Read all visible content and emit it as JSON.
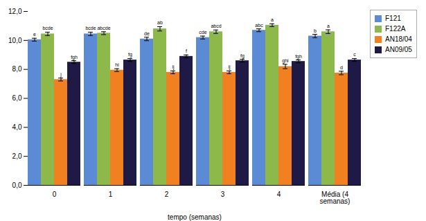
{
  "chart_data": {
    "type": "bar",
    "categories": [
      "0",
      "1",
      "2",
      "3",
      "4",
      "Média (4\nsemanas)"
    ],
    "series": [
      {
        "name": "F121",
        "color": "#5B8BD4",
        "values": [
          10.05,
          10.45,
          10.1,
          10.2,
          10.7,
          10.3
        ],
        "errors": [
          0.1,
          0.12,
          0.12,
          0.1,
          0.1,
          0.12
        ],
        "annotations": [
          "e",
          "bcde",
          "de",
          "cde",
          "abc",
          "b"
        ]
      },
      {
        "name": "F122A",
        "color": "#8DB94A",
        "values": [
          10.45,
          10.5,
          10.8,
          10.6,
          11.05,
          10.6
        ],
        "errors": [
          0.12,
          0.1,
          0.15,
          0.12,
          0.1,
          0.13
        ],
        "annotations": [
          "bcde",
          "abcde",
          "ab",
          "abcd",
          "a",
          "a"
        ]
      },
      {
        "name": "AN18/04",
        "color": "#F08020",
        "values": [
          7.3,
          7.95,
          7.8,
          7.8,
          8.2,
          7.75
        ],
        "errors": [
          0.1,
          0.1,
          0.1,
          0.1,
          0.15,
          0.12
        ],
        "annotations": [
          "j",
          "hi",
          "ij",
          "ij",
          "ghi",
          "d"
        ]
      },
      {
        "name": "AN09/05",
        "color": "#1E1A45",
        "values": [
          8.5,
          8.65,
          8.9,
          8.6,
          8.55,
          8.65
        ],
        "errors": [
          0.1,
          0.1,
          0.1,
          0.1,
          0.1,
          0.1
        ],
        "annotations": [
          "fgh",
          "fg",
          "f",
          "fg",
          "fgh",
          "c"
        ]
      }
    ],
    "xlabel": "tempo (semanas)",
    "ylim": [
      0,
      12
    ],
    "yticks": [
      {
        "value": 0.0,
        "label": "0,0"
      },
      {
        "value": 2.0,
        "label": "2,0"
      },
      {
        "value": 4.0,
        "label": "4,0"
      },
      {
        "value": 6.0,
        "label": "6,0"
      },
      {
        "value": 8.0,
        "label": "8,0"
      },
      {
        "value": 10.0,
        "label": "10,0"
      },
      {
        "value": 12.0,
        "label": "12,0"
      }
    ],
    "grid": false,
    "legend": "right"
  }
}
